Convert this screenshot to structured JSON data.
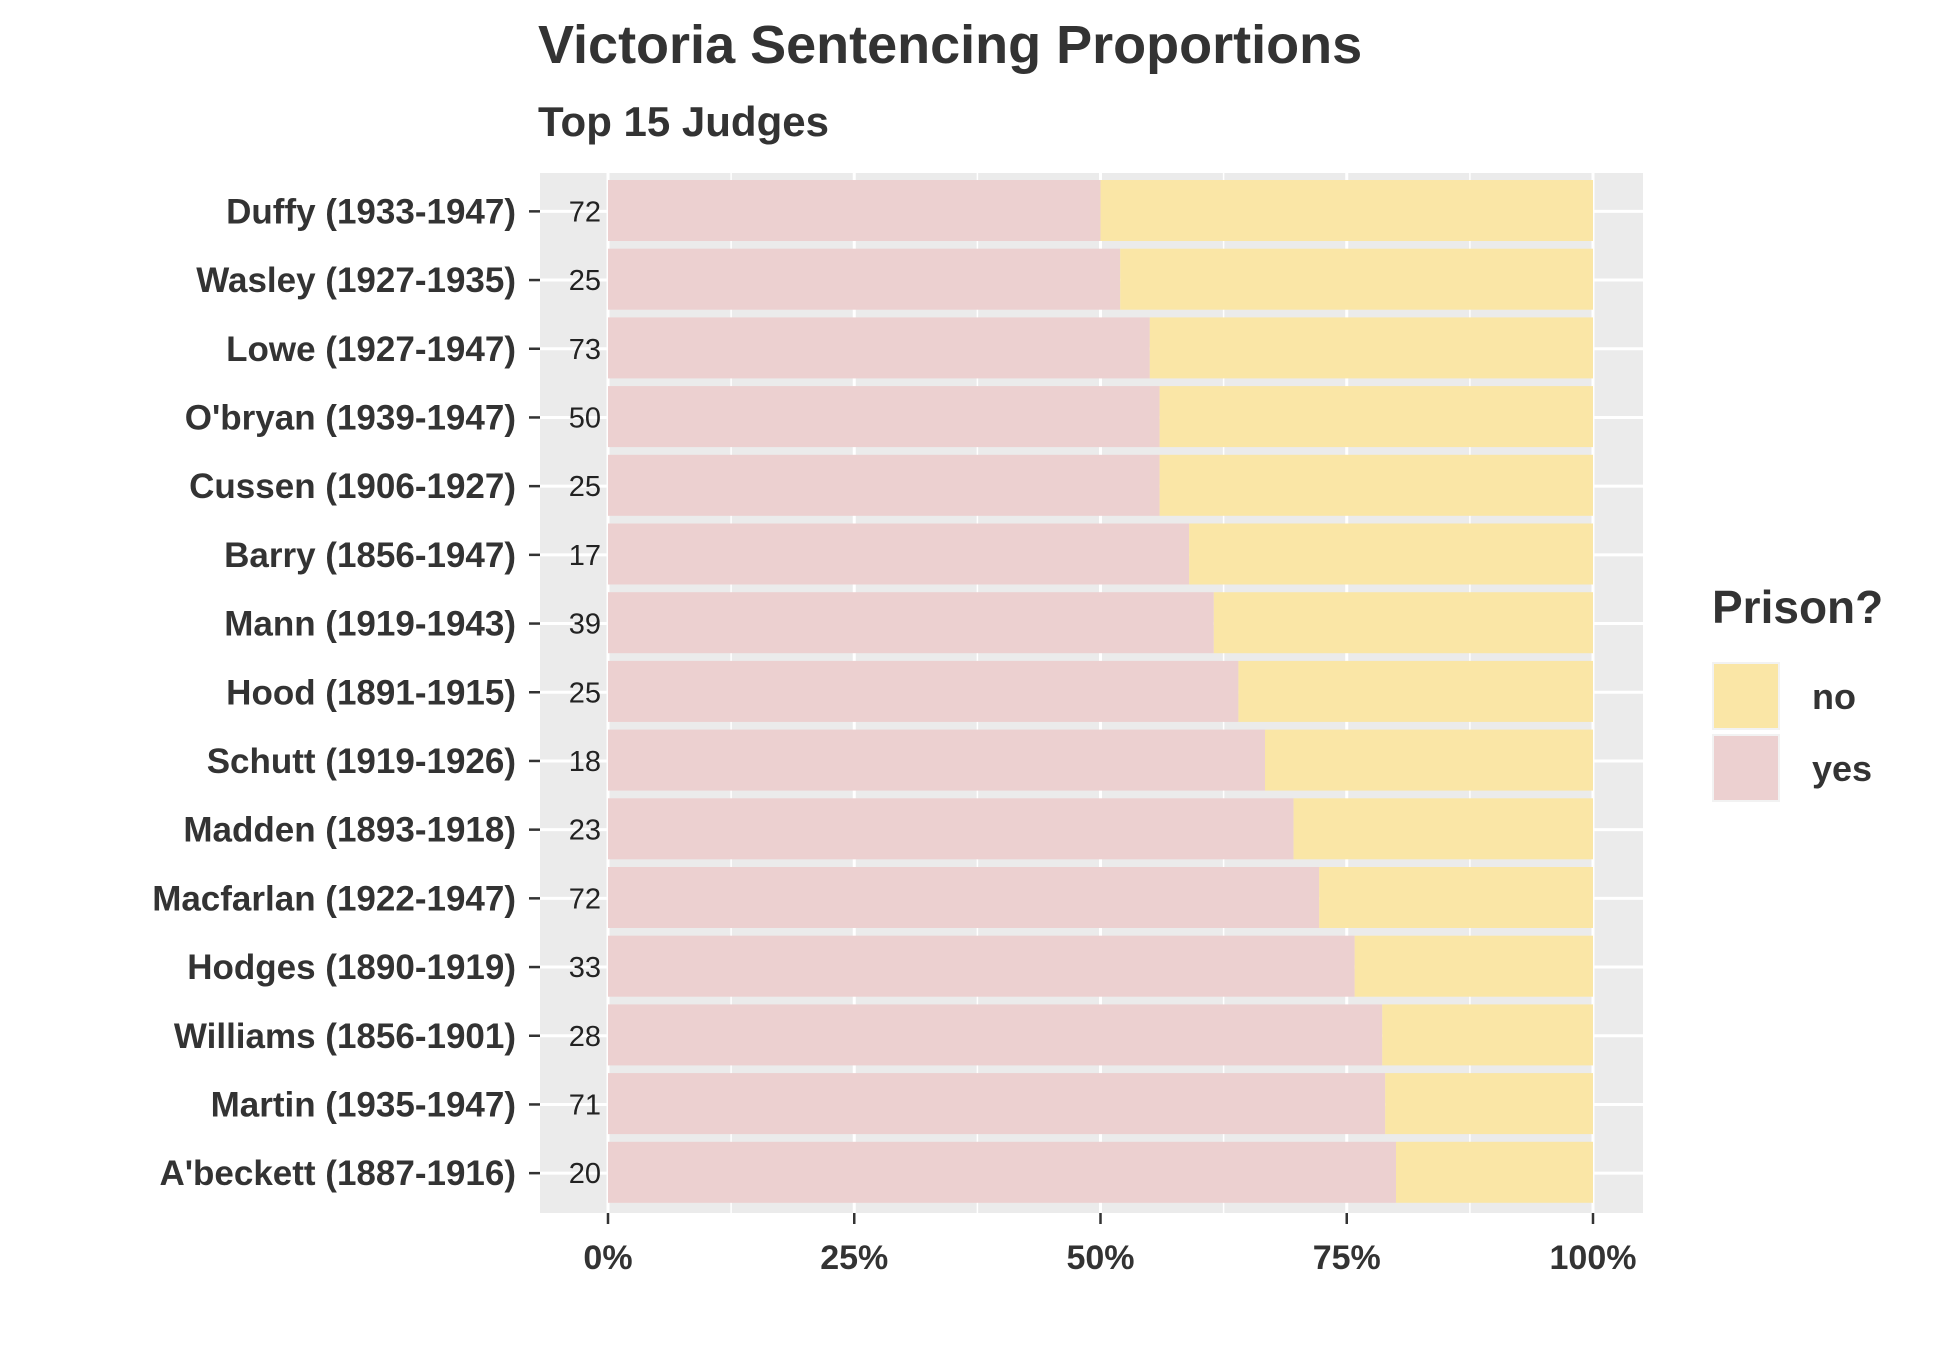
{
  "chart_data": {
    "type": "bar",
    "orientation": "horizontal",
    "stacked": "percent",
    "title": "Victoria Sentencing Proportions",
    "subtitle": "Top 15 Judges",
    "xlabel": "",
    "ylabel": "",
    "xlim": [
      0,
      1
    ],
    "x_ticks": [
      "0%",
      "25%",
      "50%",
      "75%",
      "100%"
    ],
    "grid": true,
    "legend": {
      "title": "Prison?",
      "position": "right"
    },
    "categories": [
      "Duffy (1933-1947)",
      "Wasley (1927-1935)",
      "Lowe (1927-1947)",
      "O'bryan (1939-1947)",
      "Cussen (1906-1927)",
      "Barry (1856-1947)",
      "Mann (1919-1943)",
      "Hood (1891-1915)",
      "Schutt (1919-1926)",
      "Madden (1893-1918)",
      "Macfarlan (1922-1947)",
      "Hodges (1890-1919)",
      "Williams (1856-1901)",
      "Martin (1935-1947)",
      "A'beckett (1887-1916)"
    ],
    "counts": [
      "72",
      "25",
      "73",
      "50",
      "25",
      "17",
      "39",
      "25",
      "18",
      "23",
      "72",
      "33",
      "28",
      "71",
      "20"
    ],
    "series": [
      {
        "name": "yes",
        "color": "#ecd0d0",
        "values": [
          0.5,
          0.52,
          0.55,
          0.56,
          0.56,
          0.59,
          0.615,
          0.64,
          0.667,
          0.696,
          0.722,
          0.758,
          0.786,
          0.789,
          0.8
        ]
      },
      {
        "name": "no",
        "color": "#fae6a6",
        "values": [
          0.5,
          0.48,
          0.45,
          0.44,
          0.44,
          0.41,
          0.385,
          0.36,
          0.333,
          0.304,
          0.278,
          0.242,
          0.214,
          0.211,
          0.2
        ]
      }
    ]
  }
}
